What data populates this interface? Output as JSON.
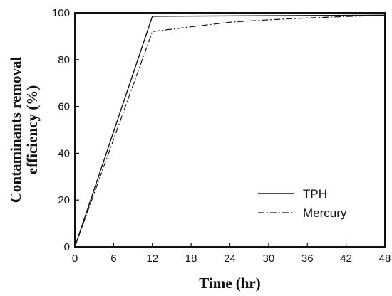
{
  "chart_data": {
    "type": "line",
    "title": "",
    "xlabel": "Time (hr)",
    "ylabel_lines": [
      "Contaminants  removal",
      "efficiency  (%)"
    ],
    "xlim": [
      0,
      48
    ],
    "ylim": [
      0,
      100
    ],
    "x_ticks": [
      0,
      6,
      12,
      18,
      24,
      30,
      36,
      42,
      48
    ],
    "y_ticks": [
      0,
      20,
      40,
      60,
      80,
      100
    ],
    "grid": false,
    "legend_position": "bottom-right",
    "series": [
      {
        "name": "TPH",
        "style": "solid",
        "points": [
          [
            0,
            0
          ],
          [
            12,
            98.5
          ],
          [
            48,
            99
          ]
        ]
      },
      {
        "name": "Mercury",
        "style": "dash-dot",
        "points": [
          [
            0,
            0
          ],
          [
            12,
            92
          ],
          [
            18,
            94
          ],
          [
            24,
            96
          ],
          [
            30,
            97
          ],
          [
            36,
            97.8
          ],
          [
            42,
            98.4
          ],
          [
            48,
            99
          ]
        ]
      }
    ],
    "colors": {
      "line": "#111111",
      "axis": "#111111"
    }
  }
}
